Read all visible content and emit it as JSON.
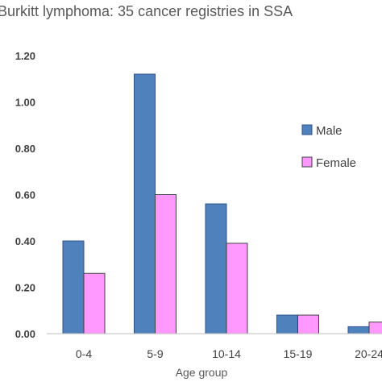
{
  "chart_data": {
    "type": "bar",
    "title": "Burkitt lymphoma: 35 cancer registries in SSA",
    "xlabel": "Age group",
    "ylabel": "",
    "categories": [
      "0-4",
      "5-9",
      "10-14",
      "15-19",
      "20-24"
    ],
    "series": [
      {
        "name": "Male",
        "color": "#4f81bd",
        "values": [
          0.4,
          1.12,
          0.56,
          0.08,
          0.03
        ]
      },
      {
        "name": "Female",
        "color": "#ff99ff",
        "values": [
          0.26,
          0.6,
          0.39,
          0.08,
          0.05
        ]
      }
    ],
    "ylim": [
      0,
      1.2
    ],
    "yticks": [
      "0.00",
      "0.20",
      "0.40",
      "0.60",
      "0.80",
      "1.00",
      "1.20"
    ],
    "grid": false,
    "legend_position": "right"
  }
}
